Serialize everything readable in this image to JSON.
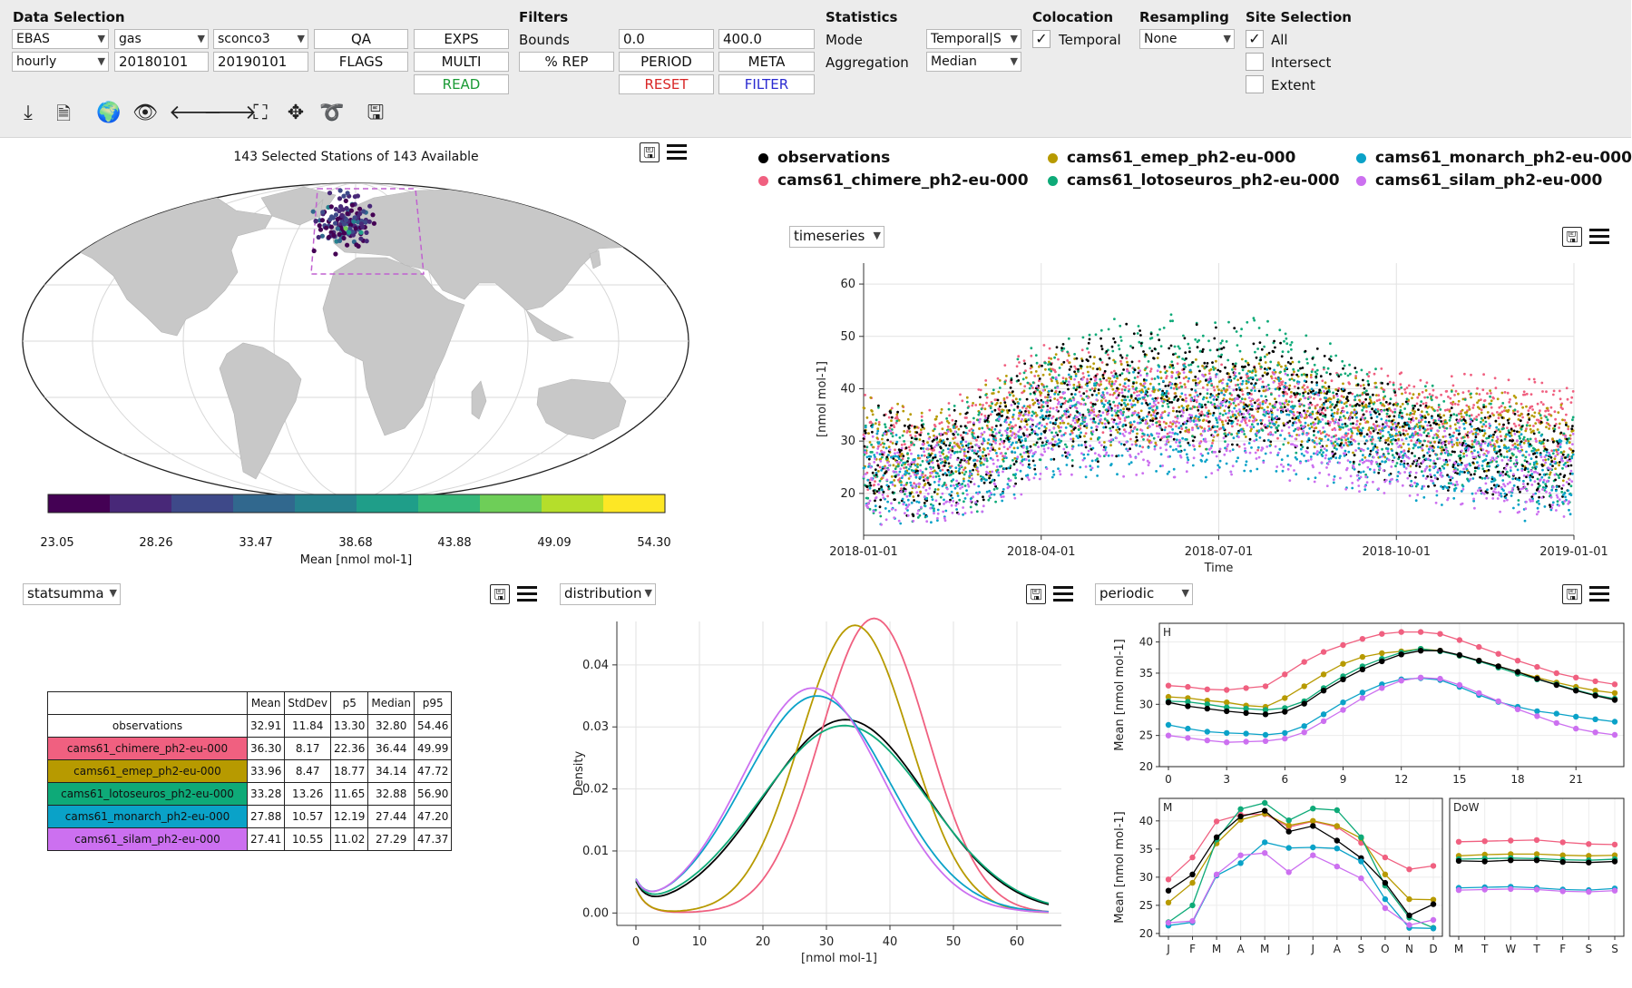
{
  "toolbar": {
    "sections": {
      "data_selection": "Data Selection",
      "filters": "Filters",
      "statistics": "Statistics",
      "colocation": "Colocation",
      "resampling": "Resampling",
      "site_selection": "Site Selection"
    },
    "data_selection": {
      "network": "EBAS",
      "matrix": "gas",
      "species": "sconco3",
      "resolution": "hourly",
      "start_date": "20180101",
      "end_date": "20190101",
      "qa_button": "QA",
      "exps_button": "EXPS",
      "flags_button": "FLAGS",
      "multi_button": "MULTI",
      "read_button": "READ"
    },
    "filters": {
      "bounds_label": "Bounds",
      "lower_bound": "0.0",
      "upper_bound": "400.0",
      "rep_button": "% REP",
      "period_button": "PERIOD",
      "meta_button": "META",
      "reset_button": "RESET",
      "filter_button": "FILTER"
    },
    "statistics": {
      "mode_label": "Mode",
      "mode_value": "Temporal|S",
      "aggregation_label": "Aggregation",
      "aggregation_value": "Median"
    },
    "colocation": {
      "temporal_label": "Temporal",
      "temporal_checked": "✓"
    },
    "resampling": {
      "value": "None"
    },
    "site_selection": {
      "all_label": "All",
      "all_checked": "✓",
      "intersect_label": "Intersect",
      "extent_label": "Extent"
    },
    "icons": [
      "download-icon",
      "document-settings-icon",
      "globe-icon",
      "eye-icon",
      "arrow-left-icon",
      "arrow-right-icon",
      "zoom-box-icon",
      "pan-icon",
      "lasso-icon",
      "save-image-icon"
    ],
    "colors": {
      "read": "#1a9a35",
      "reset": "#d92626",
      "filter": "#2a2ad0"
    }
  },
  "map": {
    "title": "143 Selected Stations of 143 Available",
    "colorbar_ticks": [
      "23.05",
      "28.26",
      "33.47",
      "38.68",
      "43.88",
      "49.09",
      "54.30"
    ],
    "colorbar_label": "Mean [nmol mol-1]",
    "colormap": [
      "#440154",
      "#482878",
      "#3e4989",
      "#31688e",
      "#26828e",
      "#1f9e89",
      "#35b779",
      "#6ece58",
      "#b5de2b",
      "#fde725"
    ]
  },
  "legend": {
    "items": [
      {
        "name": "observations",
        "color": "#000000"
      },
      {
        "name": "cams61_emep_ph2-eu-000",
        "color": "#b79a00"
      },
      {
        "name": "cams61_monarch_ph2-eu-000",
        "color": "#0aa2c8"
      },
      {
        "name": "cams61_chimere_ph2-eu-000",
        "color": "#f06080"
      },
      {
        "name": "cams61_lotoseuros_ph2-eu-000",
        "color": "#0eaa78"
      },
      {
        "name": "cams61_silam_ph2-eu-000",
        "color": "#cc70f0"
      }
    ]
  },
  "timeseries_selector": "timeseries",
  "statsummary_selector": "statsumma",
  "distribution_selector": "distribution",
  "periodic_selector": "periodic",
  "stats_table": {
    "headers": [
      "Mean",
      "StdDev",
      "p5",
      "Median",
      "p95"
    ],
    "rows": [
      {
        "name": "observations",
        "color": "#ffffff",
        "values": [
          "32.91",
          "11.84",
          "13.30",
          "32.80",
          "54.46"
        ]
      },
      {
        "name": "cams61_chimere_ph2-eu-000",
        "color": "#f06080",
        "values": [
          "36.30",
          "8.17",
          "22.36",
          "36.44",
          "49.99"
        ]
      },
      {
        "name": "cams61_emep_ph2-eu-000",
        "color": "#b79a00",
        "values": [
          "33.96",
          "8.47",
          "18.77",
          "34.14",
          "47.72"
        ]
      },
      {
        "name": "cams61_lotoseuros_ph2-eu-000",
        "color": "#0eaa78",
        "values": [
          "33.28",
          "13.26",
          "11.65",
          "32.88",
          "56.90"
        ]
      },
      {
        "name": "cams61_monarch_ph2-eu-000",
        "color": "#0aa2c8",
        "values": [
          "27.88",
          "10.57",
          "12.19",
          "27.44",
          "47.20"
        ]
      },
      {
        "name": "cams61_silam_ph2-eu-000",
        "color": "#cc70f0",
        "values": [
          "27.41",
          "10.55",
          "11.02",
          "27.29",
          "47.37"
        ]
      }
    ]
  },
  "chart_data": [
    {
      "type": "scatter",
      "name": "timeseries",
      "xlabel": "Time",
      "ylabel": "[nmol mol-1]",
      "x_ticks": [
        "2018-01-01",
        "2018-04-01",
        "2018-07-01",
        "2018-10-01",
        "2019-01-01"
      ],
      "y_ticks": [
        20,
        30,
        40,
        50,
        60
      ],
      "ylim": [
        12,
        64
      ],
      "series": [
        {
          "name": "cams61_chimere_ph2-eu-000",
          "color": "#f06080",
          "x_months": [
            0,
            1,
            2,
            3,
            4,
            5,
            6,
            7,
            8,
            9,
            10,
            11,
            12
          ],
          "y_mid": [
            30,
            27,
            33,
            40,
            39,
            37,
            36,
            37,
            36,
            36,
            35,
            36,
            33
          ],
          "y_spread": [
            10,
            9,
            10,
            9,
            9,
            9,
            9,
            9,
            8,
            8,
            8,
            8,
            8
          ]
        },
        {
          "name": "cams61_emep_ph2-eu-000",
          "color": "#b79a00",
          "x_months": [
            0,
            1,
            2,
            3,
            4,
            5,
            6,
            7,
            8,
            9,
            10,
            11,
            12
          ],
          "y_mid": [
            30,
            27,
            31,
            38,
            38,
            38,
            37,
            38,
            35,
            33,
            32,
            32,
            30
          ],
          "y_spread": [
            10,
            9,
            10,
            9,
            9,
            9,
            9,
            9,
            8,
            8,
            8,
            8,
            8
          ]
        },
        {
          "name": "cams61_lotoseuros_ph2-eu-000",
          "color": "#0eaa78",
          "x_months": [
            0,
            1,
            2,
            3,
            4,
            5,
            6,
            7,
            8,
            9,
            10,
            11,
            12
          ],
          "y_mid": [
            26,
            24,
            28,
            37,
            40,
            42,
            41,
            41,
            37,
            32,
            30,
            28,
            26
          ],
          "y_spread": [
            12,
            11,
            12,
            13,
            14,
            14,
            14,
            13,
            12,
            11,
            10,
            10,
            10
          ]
        },
        {
          "name": "observations",
          "color": "#000000",
          "x_months": [
            0,
            1,
            2,
            3,
            4,
            5,
            6,
            7,
            8,
            9,
            10,
            11,
            12
          ],
          "y_mid": [
            27,
            25,
            28,
            36,
            39,
            41,
            40,
            40,
            36,
            31,
            28,
            27,
            25
          ],
          "y_spread": [
            11,
            10,
            11,
            12,
            13,
            13,
            13,
            12,
            11,
            10,
            9,
            9,
            9
          ]
        },
        {
          "name": "cams61_monarch_ph2-eu-000",
          "color": "#0aa2c8",
          "x_months": [
            0,
            1,
            2,
            3,
            4,
            5,
            6,
            7,
            8,
            9,
            10,
            11,
            12
          ],
          "y_mid": [
            24,
            22,
            25,
            32,
            33,
            34,
            33,
            34,
            31,
            28,
            26,
            24,
            22
          ],
          "y_spread": [
            10,
            9,
            10,
            10,
            11,
            11,
            11,
            11,
            10,
            9,
            9,
            9,
            9
          ]
        },
        {
          "name": "cams61_silam_ph2-eu-000",
          "color": "#cc70f0",
          "x_months": [
            0,
            1,
            2,
            3,
            4,
            5,
            6,
            7,
            8,
            9,
            10,
            11,
            12
          ],
          "y_mid": [
            23,
            22,
            25,
            32,
            33,
            34,
            33,
            33,
            30,
            28,
            26,
            24,
            23
          ],
          "y_spread": [
            10,
            9,
            10,
            10,
            11,
            11,
            11,
            11,
            10,
            9,
            9,
            9,
            9
          ]
        }
      ]
    },
    {
      "type": "line",
      "name": "distribution",
      "xlabel": "[nmol mol-1]",
      "ylabel": "Density",
      "xlim": [
        -3,
        67
      ],
      "ylim": [
        -0.002,
        0.047
      ],
      "x_ticks": [
        0,
        10,
        20,
        30,
        40,
        50,
        60
      ],
      "y_ticks": [
        0.0,
        0.01,
        0.02,
        0.03,
        0.04
      ],
      "y_tick_labels": [
        "0.00",
        "0.01",
        "0.02",
        "0.03",
        "0.04"
      ],
      "series": [
        {
          "name": "observations",
          "color": "#000000",
          "mean": 33.0,
          "sd": 12.8
        },
        {
          "name": "cams61_chimere_ph2-eu-000",
          "color": "#f06080",
          "mean": 37.5,
          "sd": 8.4
        },
        {
          "name": "cams61_emep_ph2-eu-000",
          "color": "#b79a00",
          "mean": 34.5,
          "sd": 8.6
        },
        {
          "name": "cams61_lotoseuros_ph2-eu-000",
          "color": "#0eaa78",
          "mean": 32.8,
          "sd": 13.2
        },
        {
          "name": "cams61_monarch_ph2-eu-000",
          "color": "#0aa2c8",
          "mean": 28.5,
          "sd": 11.4
        },
        {
          "name": "cams61_silam_ph2-eu-000",
          "color": "#cc70f0",
          "mean": 27.8,
          "sd": 11.0
        }
      ]
    },
    {
      "type": "line",
      "name": "periodic-hour",
      "panel_label": "H",
      "ylabel": "Mean [nmol mol-1]",
      "ylim": [
        20,
        43
      ],
      "y_ticks": [
        20,
        25,
        30,
        35,
        40
      ],
      "x_ticks": [
        0,
        3,
        6,
        9,
        12,
        15,
        18,
        21
      ],
      "x": [
        0,
        1,
        2,
        3,
        4,
        5,
        6,
        7,
        8,
        9,
        10,
        11,
        12,
        13,
        14,
        15,
        16,
        17,
        18,
        19,
        20,
        21,
        22,
        23
      ],
      "series": [
        {
          "name": "cams61_chimere_ph2-eu-000",
          "color": "#f06080",
          "values": [
            33,
            32.8,
            32.4,
            32.3,
            32.6,
            32.9,
            34.8,
            36.8,
            38.4,
            39.5,
            40.5,
            41.3,
            41.6,
            41.6,
            41.3,
            40.3,
            39.2,
            38.1,
            37,
            36,
            35,
            34.3,
            33.7,
            33.2
          ]
        },
        {
          "name": "cams61_emep_ph2-eu-000",
          "color": "#b79a00",
          "values": [
            31.2,
            31,
            30.6,
            30.3,
            29.8,
            29.6,
            31,
            32.9,
            34.8,
            36.5,
            37.6,
            38.2,
            38.5,
            38.9,
            38.6,
            37.8,
            37,
            36.1,
            35.2,
            34.3,
            33.5,
            32.8,
            32.2,
            31.8
          ]
        },
        {
          "name": "cams61_lotoseuros_ph2-eu-000",
          "color": "#0eaa78",
          "values": [
            30.5,
            30.4,
            30,
            29.5,
            29.3,
            29.1,
            29.4,
            30.5,
            32.6,
            34.5,
            36.1,
            37.3,
            38.3,
            38.9,
            38.5,
            37.8,
            36.9,
            35.9,
            34.9,
            34,
            33.2,
            32.3,
            31.5,
            30.9
          ]
        },
        {
          "name": "observations",
          "color": "#000000",
          "values": [
            30.3,
            29.7,
            29.3,
            28.9,
            28.6,
            28.4,
            28.8,
            30.1,
            32.2,
            34,
            35.6,
            36.9,
            38,
            38.6,
            38.6,
            37.9,
            37,
            36.1,
            35.2,
            34.1,
            33.1,
            32.2,
            31.4,
            30.7
          ]
        },
        {
          "name": "cams61_monarch_ph2-eu-000",
          "color": "#0aa2c8",
          "values": [
            26.7,
            26.1,
            25.6,
            25.4,
            25.3,
            25.1,
            25.4,
            26.5,
            28.4,
            30.3,
            31.9,
            33.2,
            34,
            34.2,
            33.9,
            32.8,
            31.5,
            30.4,
            29.6,
            28.9,
            28.5,
            28,
            27.6,
            27.2
          ]
        },
        {
          "name": "cams61_silam_ph2-eu-000",
          "color": "#cc70f0",
          "values": [
            25,
            24.6,
            24.2,
            23.9,
            24,
            24.1,
            24.5,
            25.5,
            27.3,
            29.1,
            31,
            32.6,
            33.8,
            34.3,
            34.1,
            33.1,
            31.8,
            30.5,
            29.2,
            28.1,
            27,
            26.1,
            25.5,
            25.1
          ]
        }
      ]
    },
    {
      "type": "line",
      "name": "periodic-month",
      "panel_label": "M",
      "ylabel": "Mean [nmol mol-1]",
      "ylim": [
        19.5,
        44
      ],
      "y_ticks": [
        20,
        25,
        30,
        35,
        40
      ],
      "categories": [
        "J",
        "F",
        "M",
        "A",
        "M",
        "J",
        "J",
        "A",
        "S",
        "O",
        "N",
        "D"
      ],
      "series": [
        {
          "name": "cams61_chimere_ph2-eu-000",
          "color": "#f06080",
          "values": [
            29.6,
            33.5,
            39.9,
            41.1,
            41.2,
            38.9,
            39.9,
            38.9,
            36.1,
            33.5,
            31.4,
            32
          ]
        },
        {
          "name": "cams61_emep_ph2-eu-000",
          "color": "#b79a00",
          "values": [
            25.5,
            29,
            36,
            40.2,
            41.3,
            39.2,
            40,
            39.1,
            36.9,
            30.5,
            26.1,
            26
          ]
        },
        {
          "name": "cams61_lotoseuros_ph2-eu-000",
          "color": "#0eaa78",
          "values": [
            22,
            25,
            36.7,
            42.1,
            43.2,
            40.1,
            42.2,
            41.9,
            37.1,
            28.5,
            22.8,
            21
          ]
        },
        {
          "name": "observations",
          "color": "#000000",
          "values": [
            27.6,
            30.5,
            37.1,
            40.8,
            41.8,
            38.1,
            39.1,
            36.5,
            33.4,
            29,
            23.2,
            25.2
          ]
        },
        {
          "name": "cams61_monarch_ph2-eu-000",
          "color": "#0aa2c8",
          "values": [
            21.4,
            22,
            30.3,
            32.5,
            36.2,
            35.2,
            35.3,
            35.1,
            32.8,
            26.1,
            21,
            20.9
          ]
        },
        {
          "name": "cams61_silam_ph2-eu-000",
          "color": "#cc70f0",
          "values": [
            21.9,
            22.2,
            30.5,
            33.9,
            34.3,
            30.9,
            33.9,
            31.9,
            29.8,
            24.5,
            21.5,
            22.4
          ]
        }
      ]
    },
    {
      "type": "line",
      "name": "periodic-dayofweek",
      "panel_label": "DoW",
      "ylim": [
        19.5,
        44
      ],
      "categories": [
        "M",
        "T",
        "W",
        "T",
        "F",
        "S",
        "S"
      ],
      "series": [
        {
          "name": "cams61_chimere_ph2-eu-000",
          "color": "#f06080",
          "values": [
            36.3,
            36.4,
            36.5,
            36.6,
            36.2,
            35.9,
            35.8
          ]
        },
        {
          "name": "cams61_emep_ph2-eu-000",
          "color": "#b79a00",
          "values": [
            33.8,
            34,
            34.1,
            34.1,
            33.9,
            33.8,
            33.9
          ]
        },
        {
          "name": "cams61_lotoseuros_ph2-eu-000",
          "color": "#0eaa78",
          "values": [
            33.2,
            33.3,
            33.4,
            33.3,
            33.1,
            33,
            33.2
          ]
        },
        {
          "name": "observations",
          "color": "#000000",
          "values": [
            32.9,
            32.8,
            33,
            33,
            32.7,
            32.6,
            32.8
          ]
        },
        {
          "name": "cams61_monarch_ph2-eu-000",
          "color": "#0aa2c8",
          "values": [
            28.1,
            28.2,
            28.3,
            28.1,
            27.8,
            27.7,
            28
          ]
        },
        {
          "name": "cams61_silam_ph2-eu-000",
          "color": "#cc70f0",
          "values": [
            27.7,
            27.8,
            27.9,
            27.8,
            27.5,
            27.4,
            27.6
          ]
        }
      ]
    }
  ]
}
